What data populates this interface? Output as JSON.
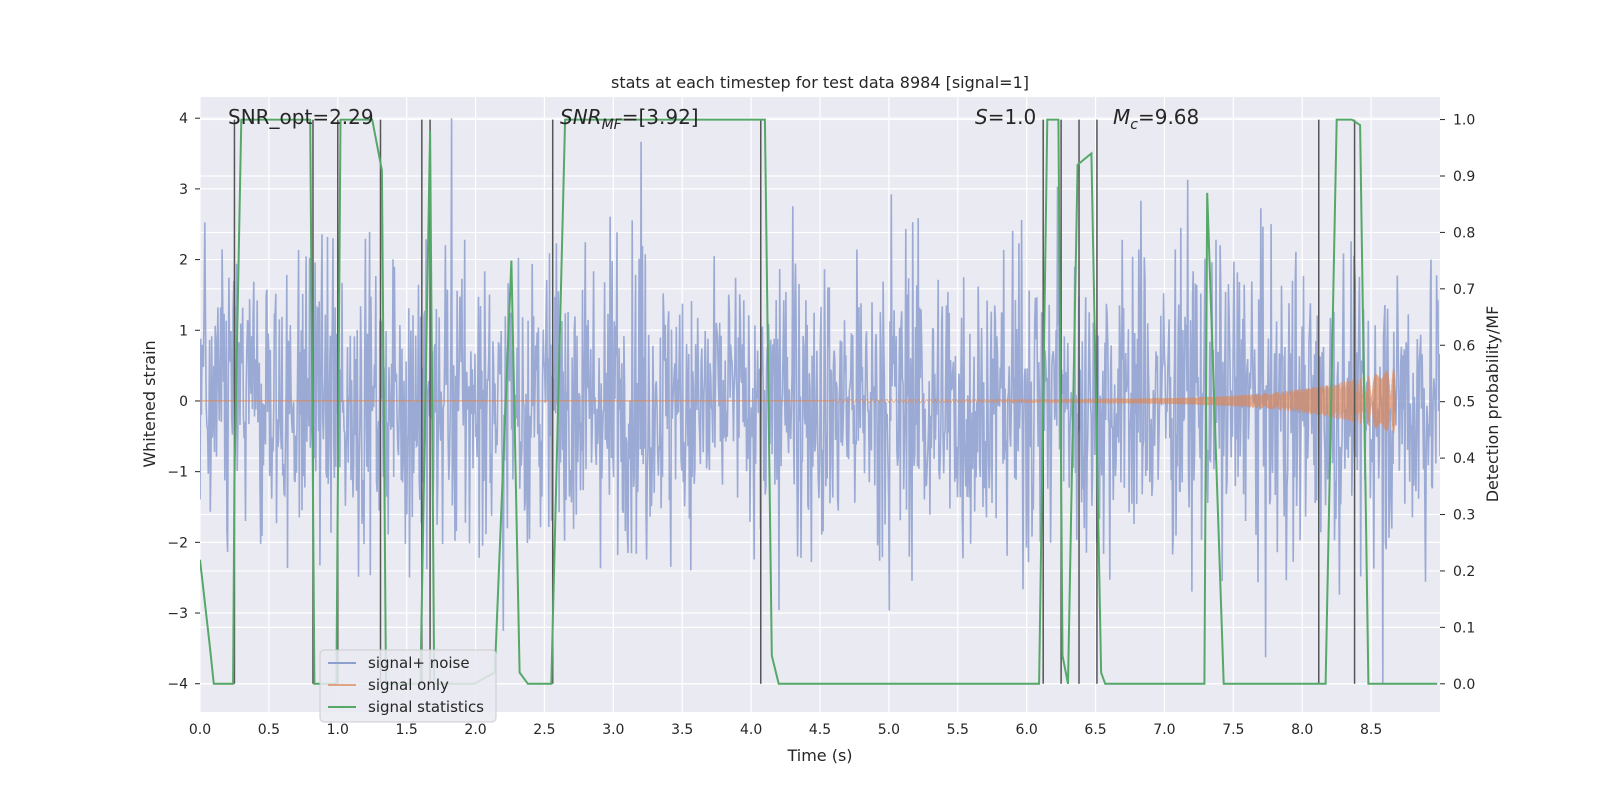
{
  "chart_data": {
    "type": "line",
    "title": "stats at each timestep for test data 8984 [signal=1]",
    "xlabel": "Time (s)",
    "ylabel_left": "Whitened strain",
    "ylabel_right": "Detection probability/MF",
    "xlim": [
      0.0,
      9.0
    ],
    "ylim_left": [
      -4.4,
      4.3
    ],
    "ylim_right": [
      -0.05,
      1.04
    ],
    "x_ticks": [
      "0.0",
      "0.5",
      "1.0",
      "1.5",
      "2.0",
      "2.5",
      "3.0",
      "3.5",
      "4.0",
      "4.5",
      "5.0",
      "5.5",
      "6.0",
      "6.5",
      "7.0",
      "7.5",
      "8.0",
      "8.5"
    ],
    "y_ticks_left": [
      "4",
      "3",
      "2",
      "1",
      "0",
      "−1",
      "−2",
      "−3",
      "−4"
    ],
    "y_ticks_right": [
      "1.0",
      "0.9",
      "0.8",
      "0.7",
      "0.6",
      "0.5",
      "0.4",
      "0.3",
      "0.2",
      "0.1",
      "0.0"
    ],
    "annotations": {
      "snr_opt": "SNR_opt=2.29",
      "snr_mf_main": "SNR",
      "snr_mf_sub": "MF",
      "snr_mf_val": "=[3.92]",
      "s_main": "S",
      "s_val": "=1.0",
      "mc_main": "M",
      "mc_sub": "c",
      "mc_val": "=9.68"
    },
    "legend": {
      "placement": "lower-left",
      "entries": [
        {
          "label": "signal+ noise",
          "color": "#8c9fcf"
        },
        {
          "label": "signal only",
          "color": "#dd8452"
        },
        {
          "label": "signal statistics",
          "color": "#55a868"
        }
      ]
    },
    "grid": true,
    "series": [
      {
        "name": "signal+ noise",
        "color": "#8c9fcf",
        "description_envelope": {
          "x_range": [
            0.0,
            9.0
          ],
          "typical_amplitude": 1.6,
          "peak_amplitude": 4.0
        }
      },
      {
        "name": "signal only",
        "color": "#dd8452",
        "chirp": {
          "start": 4.6,
          "end": 8.68,
          "peak_amplitude": 0.45
        }
      },
      {
        "name": "signal statistics",
        "color": "#55a868",
        "x": [
          0.0,
          0.07,
          0.1,
          0.24,
          0.25,
          0.3,
          0.8,
          0.83,
          0.99,
          1.02,
          1.05,
          1.25,
          1.32,
          1.35,
          1.43,
          1.6,
          1.67,
          1.7,
          1.8,
          1.99,
          2.14,
          2.26,
          2.32,
          2.38,
          2.55,
          2.65,
          4.1,
          4.15,
          4.2,
          4.32,
          5.5,
          6.09,
          6.15,
          6.23,
          6.26,
          6.3,
          6.37,
          6.47,
          6.54,
          6.57,
          6.69,
          7.29,
          7.31,
          7.43,
          8.17,
          8.25,
          8.36,
          8.42,
          8.48,
          8.98
        ],
        "y": [
          0.22,
          0.07,
          0.0,
          0.0,
          0.36,
          1.0,
          1.0,
          0.0,
          0.0,
          1.0,
          1.0,
          1.0,
          0.91,
          0.0,
          0.0,
          0.0,
          0.98,
          0.0,
          0.0,
          0.0,
          0.02,
          0.75,
          0.02,
          0.0,
          0.0,
          1.0,
          1.0,
          0.05,
          0.0,
          0.0,
          0.0,
          0.0,
          1.0,
          1.0,
          0.05,
          0.0,
          0.92,
          0.94,
          0.02,
          0.0,
          0.0,
          0.0,
          0.87,
          0.0,
          0.0,
          1.0,
          1.0,
          0.99,
          0.0,
          0.0
        ]
      }
    ],
    "vertical_markers_x": [
      0.25,
      0.82,
      1.0,
      1.31,
      1.61,
      1.67,
      2.56,
      4.07,
      6.12,
      6.25,
      6.38,
      6.51,
      8.12,
      8.38
    ]
  }
}
